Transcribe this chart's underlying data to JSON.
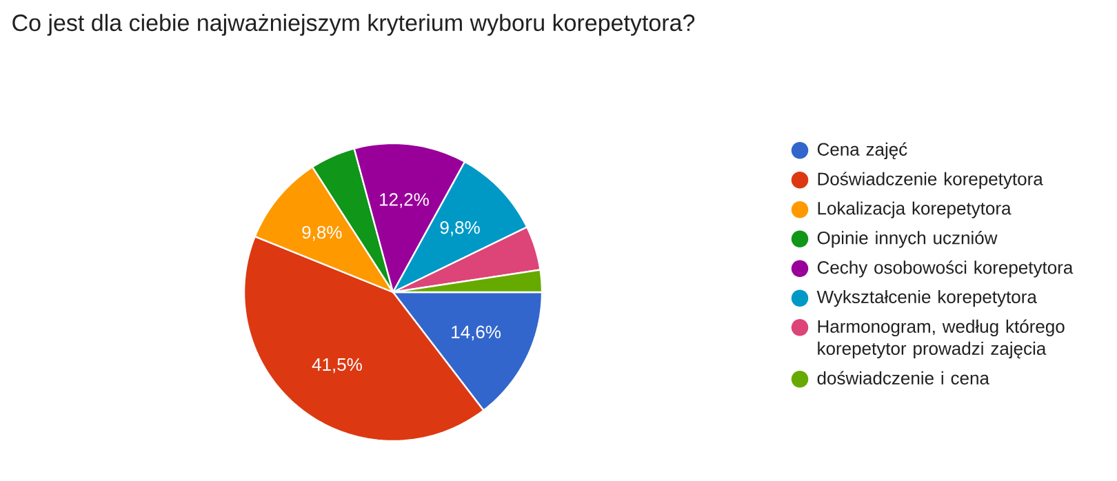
{
  "chart_data": {
    "type": "pie",
    "title": "Co jest dla ciebie najważniejszym kryterium wyboru korepetytora?",
    "categories": [
      "Cena zajęć",
      "Doświadczenie korepetytora",
      "Lokalizacja korepetytora",
      "Opinie innych uczniów",
      "Cechy osobowości korepetytora",
      "Wykształcenie korepetytora",
      "Harmonogram, według którego korepetytor prowadzi zajęcia",
      "doświadczenie i cena"
    ],
    "values": [
      14.6,
      41.5,
      9.8,
      4.9,
      12.2,
      9.8,
      4.8,
      2.4
    ],
    "colors": [
      "#3366cc",
      "#dc3912",
      "#ff9900",
      "#109618",
      "#990099",
      "#0099c6",
      "#dd4477",
      "#66aa00"
    ],
    "value_labels": [
      "14,6%",
      "41,5%",
      "9,8%",
      null,
      "12,2%",
      "9,8%",
      null,
      null
    ],
    "legend": "right"
  }
}
